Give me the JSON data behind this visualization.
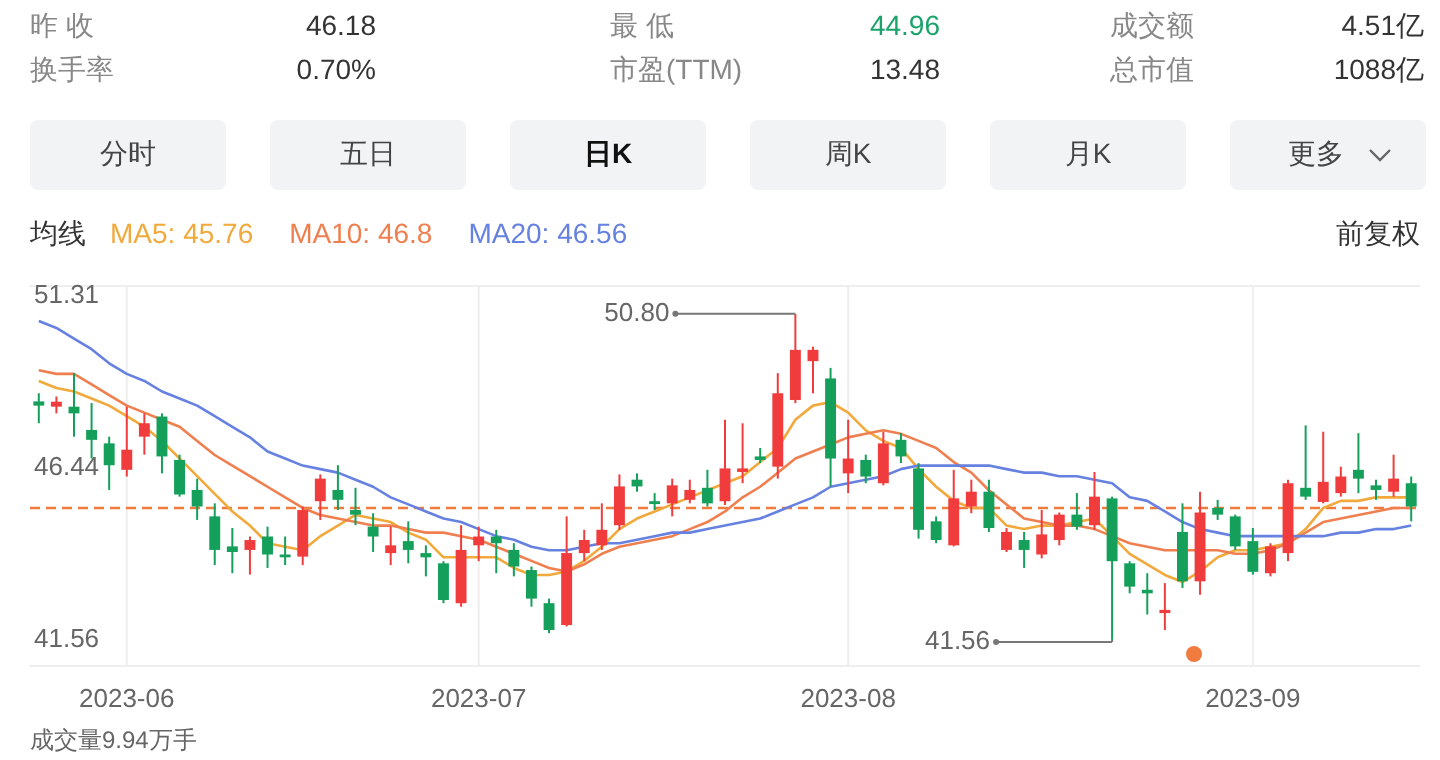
{
  "chart_data": [
    {
      "type": "other",
      "annotations": [
        "昨 收",
        "46.18",
        "最 低",
        "44.96",
        "成交额",
        "4.51亿",
        "换手率",
        "0.70%",
        "市盈(TTM)",
        "13.48",
        "总市值",
        "1088亿",
        "分时",
        "五日",
        "日K",
        "周K",
        "月K",
        "更多"
      ]
    },
    {
      "type": "candlestick",
      "legend": "top left",
      "grid": "x",
      "annotations": [
        "均线",
        "前复权",
        "50.80",
        "41.56",
        "成交量9.94万手"
      ],
      "ylim": [
        40.82,
        51.59
      ],
      "yticks": [
        51.31,
        46.44,
        41.56
      ],
      "ref_lines": [
        {
          "axis": "y",
          "value": 45.3,
          "color": "#f07b3f",
          "line_style": "dashed"
        }
      ],
      "categories": [
        null,
        null,
        null,
        null,
        null,
        "2023-06",
        null,
        null,
        null,
        null,
        null,
        null,
        null,
        null,
        null,
        null,
        null,
        null,
        null,
        null,
        null,
        null,
        null,
        null,
        null,
        "2023-07",
        null,
        null,
        null,
        null,
        null,
        null,
        null,
        null,
        null,
        null,
        null,
        null,
        null,
        null,
        null,
        null,
        null,
        null,
        null,
        null,
        "2023-08",
        null,
        null,
        null,
        null,
        null,
        null,
        null,
        null,
        null,
        null,
        null,
        null,
        null,
        null,
        null,
        null,
        null,
        null,
        null,
        null,
        null,
        null,
        "2023-09",
        null,
        null,
        null,
        null,
        null,
        null,
        null,
        null,
        null
      ],
      "ohlc": [
        [
          48.32,
          48.55,
          47.7,
          48.2
        ],
        [
          48.17,
          48.46,
          47.98,
          48.31
        ],
        [
          48.17,
          49.12,
          47.32,
          47.98
        ],
        [
          47.51,
          48.27,
          46.7,
          47.23
        ],
        [
          47.13,
          47.32,
          45.81,
          46.51
        ],
        [
          46.38,
          48.17,
          46.19,
          46.95
        ],
        [
          47.32,
          47.98,
          46.81,
          47.7
        ],
        [
          47.89,
          47.98,
          46.28,
          46.76
        ],
        [
          46.66,
          46.81,
          45.62,
          45.68
        ],
        [
          45.81,
          46.13,
          44.96,
          45.34
        ],
        [
          45.06,
          45.43,
          43.68,
          44.11
        ],
        [
          44.21,
          44.73,
          43.45,
          44.05
        ],
        [
          44.11,
          44.49,
          43.41,
          44.39
        ],
        [
          44.49,
          44.77,
          43.6,
          43.98
        ],
        [
          43.98,
          44.49,
          43.68,
          43.9
        ],
        [
          43.92,
          45.34,
          43.68,
          45.24
        ],
        [
          45.49,
          46.25,
          44.96,
          46.13
        ],
        [
          45.81,
          46.51,
          45.24,
          45.53
        ],
        [
          45.24,
          45.87,
          44.81,
          45.11
        ],
        [
          44.77,
          45.15,
          44.05,
          44.49
        ],
        [
          44.02,
          44.77,
          43.68,
          44.24
        ],
        [
          44.36,
          44.92,
          43.73,
          44.11
        ],
        [
          44.02,
          44.24,
          43.36,
          43.9
        ],
        [
          43.73,
          43.79,
          42.6,
          42.69
        ],
        [
          42.6,
          44.81,
          42.5,
          44.11
        ],
        [
          44.24,
          44.77,
          43.79,
          44.49
        ],
        [
          44.49,
          44.68,
          43.45,
          44.3
        ],
        [
          44.11,
          44.3,
          43.36,
          43.64
        ],
        [
          43.54,
          43.64,
          42.5,
          42.73
        ],
        [
          42.6,
          42.73,
          41.75,
          41.84
        ],
        [
          41.98,
          45.06,
          41.94,
          44.02
        ],
        [
          44.02,
          44.68,
          43.79,
          44.39
        ],
        [
          44.24,
          45.43,
          44.11,
          44.68
        ],
        [
          44.81,
          46.25,
          44.68,
          45.91
        ],
        [
          46.1,
          46.28,
          45.76,
          45.91
        ],
        [
          45.49,
          45.72,
          45.24,
          45.41
        ],
        [
          45.43,
          46.13,
          45.06,
          45.94
        ],
        [
          45.53,
          46.1,
          45.43,
          45.81
        ],
        [
          45.87,
          46.38,
          45.34,
          45.43
        ],
        [
          45.49,
          47.8,
          45.38,
          46.42
        ],
        [
          46.32,
          47.7,
          46.0,
          46.42
        ],
        [
          46.76,
          47.0,
          46.57,
          46.66
        ],
        [
          46.47,
          49.12,
          46.13,
          48.55
        ],
        [
          48.36,
          50.8,
          48.27,
          49.78
        ],
        [
          49.46,
          49.87,
          48.55,
          49.78
        ],
        [
          48.97,
          49.27,
          45.91,
          46.7
        ],
        [
          46.28,
          47.8,
          45.72,
          46.7
        ],
        [
          46.66,
          46.81,
          46.0,
          46.19
        ],
        [
          46.0,
          47.46,
          45.94,
          47.13
        ],
        [
          47.23,
          47.42,
          46.57,
          46.76
        ],
        [
          46.42,
          46.57,
          44.43,
          44.68
        ],
        [
          44.92,
          45.06,
          44.3,
          44.39
        ],
        [
          44.24,
          46.38,
          44.21,
          45.57
        ],
        [
          45.34,
          46.1,
          45.15,
          45.76
        ],
        [
          45.76,
          46.1,
          44.62,
          44.73
        ],
        [
          44.11,
          44.73,
          44.05,
          44.62
        ],
        [
          44.39,
          44.62,
          43.6,
          44.11
        ],
        [
          43.98,
          45.24,
          43.87,
          44.55
        ],
        [
          44.39,
          45.17,
          44.24,
          45.11
        ],
        [
          45.11,
          45.72,
          44.68,
          44.77
        ],
        [
          44.81,
          46.32,
          44.68,
          45.62
        ],
        [
          45.57,
          45.62,
          41.56,
          43.79
        ],
        [
          43.73,
          43.79,
          42.88,
          43.07
        ],
        [
          42.98,
          43.45,
          42.28,
          42.88
        ],
        [
          42.32,
          43.17,
          41.84,
          42.41
        ],
        [
          44.62,
          45.43,
          43.03,
          43.22
        ],
        [
          43.22,
          45.76,
          42.84,
          45.17
        ],
        [
          45.3,
          45.53,
          44.96,
          45.11
        ],
        [
          45.06,
          45.11,
          44.11,
          44.21
        ],
        [
          44.36,
          44.73,
          43.41,
          43.49
        ],
        [
          43.45,
          44.3,
          43.36,
          44.21
        ],
        [
          44.02,
          46.1,
          43.79,
          46.0
        ],
        [
          45.87,
          47.64,
          45.53,
          45.62
        ],
        [
          45.47,
          47.46,
          45.43,
          46.04
        ],
        [
          45.72,
          46.47,
          45.62,
          46.19
        ],
        [
          46.38,
          47.42,
          45.72,
          46.13
        ],
        [
          45.94,
          46.1,
          45.53,
          45.81
        ],
        [
          45.76,
          46.81,
          45.62,
          46.13
        ],
        [
          46.0,
          46.19,
          44.92,
          45.34
        ]
      ],
      "colors": [
        "#14a05a",
        "#f03c3c",
        "#14a05a",
        "#14a05a",
        "#14a05a",
        "#f03c3c",
        "#f03c3c",
        "#14a05a",
        "#14a05a",
        "#14a05a",
        "#14a05a",
        "#14a05a",
        "#f03c3c",
        "#14a05a",
        "#14a05a",
        "#f03c3c",
        "#f03c3c",
        "#14a05a",
        "#14a05a",
        "#14a05a",
        "#f03c3c",
        "#14a05a",
        "#14a05a",
        "#14a05a",
        "#f03c3c",
        "#f03c3c",
        "#14a05a",
        "#14a05a",
        "#14a05a",
        "#14a05a",
        "#f03c3c",
        "#f03c3c",
        "#f03c3c",
        "#f03c3c",
        "#14a05a",
        "#14a05a",
        "#f03c3c",
        "#f03c3c",
        "#14a05a",
        "#f03c3c",
        "#f03c3c",
        "#14a05a",
        "#f03c3c",
        "#f03c3c",
        "#f03c3c",
        "#14a05a",
        "#f03c3c",
        "#14a05a",
        "#f03c3c",
        "#14a05a",
        "#14a05a",
        "#14a05a",
        "#f03c3c",
        "#f03c3c",
        "#14a05a",
        "#f03c3c",
        "#14a05a",
        "#f03c3c",
        "#f03c3c",
        "#14a05a",
        "#f03c3c",
        "#14a05a",
        "#14a05a",
        "#14a05a",
        "#f03c3c",
        "#14a05a",
        "#f03c3c",
        "#14a05a",
        "#14a05a",
        "#14a05a",
        "#f03c3c",
        "#f03c3c",
        "#14a05a",
        "#f03c3c",
        "#f03c3c",
        "#14a05a",
        "#14a05a",
        "#f03c3c",
        "#14a05a"
      ],
      "series": [
        {
          "name": "MA5: 45.76",
          "type": "line",
          "color": "#f2a93b",
          "values": [
            48.9,
            48.7,
            48.6,
            48.4,
            48.2,
            47.9,
            47.6,
            47.2,
            46.7,
            46.2,
            45.7,
            45.2,
            44.8,
            44.3,
            44.2,
            44.1,
            44.5,
            44.8,
            45.1,
            45.0,
            44.9,
            44.6,
            44.4,
            43.9,
            43.9,
            43.9,
            43.9,
            43.6,
            43.4,
            43.4,
            43.5,
            43.8,
            44.2,
            44.7,
            45.0,
            45.2,
            45.4,
            45.6,
            45.8,
            46.0,
            46.2,
            46.6,
            47.0,
            47.8,
            48.2,
            48.3,
            48.0,
            47.5,
            47.2,
            47.0,
            46.4,
            45.9,
            45.5,
            45.3,
            45.3,
            44.8,
            44.7,
            44.8,
            44.8,
            44.9,
            45.0,
            44.5,
            44.0,
            43.7,
            43.4,
            43.2,
            43.5,
            43.9,
            44.1,
            44.1,
            44.2,
            44.3,
            44.7,
            45.3,
            45.5,
            45.5,
            45.6,
            45.6,
            45.6
          ]
        },
        {
          "name": "MA10: 46.8",
          "type": "line",
          "color": "#ef7f4f",
          "values": [
            49.2,
            49.1,
            49.1,
            48.8,
            48.5,
            48.2,
            48.0,
            47.8,
            47.6,
            47.2,
            46.8,
            46.5,
            46.2,
            45.9,
            45.6,
            45.3,
            45.1,
            45.0,
            44.9,
            44.8,
            44.8,
            44.7,
            44.6,
            44.6,
            44.5,
            44.4,
            44.2,
            44.0,
            43.8,
            43.6,
            43.5,
            43.7,
            44.0,
            44.2,
            44.3,
            44.4,
            44.5,
            44.7,
            44.9,
            45.2,
            45.6,
            45.9,
            46.3,
            46.7,
            46.9,
            47.1,
            47.3,
            47.4,
            47.5,
            47.4,
            47.2,
            47.0,
            46.6,
            46.3,
            45.8,
            45.4,
            45.0,
            44.9,
            44.8,
            44.8,
            44.7,
            44.5,
            44.3,
            44.2,
            44.1,
            44.1,
            44.1,
            44.1,
            44.0,
            44.0,
            44.1,
            44.3,
            44.6,
            44.9,
            45.0,
            45.1,
            45.2,
            45.3,
            45.3
          ]
        },
        {
          "name": "MA20: 46.56",
          "type": "line",
          "color": "#6681e0",
          "values": [
            50.6,
            50.4,
            50.1,
            49.8,
            49.4,
            49.1,
            48.9,
            48.6,
            48.4,
            48.2,
            47.9,
            47.6,
            47.3,
            46.9,
            46.7,
            46.5,
            46.4,
            46.3,
            46.1,
            45.9,
            45.6,
            45.4,
            45.2,
            45.0,
            44.9,
            44.7,
            44.5,
            44.4,
            44.2,
            44.1,
            44.1,
            44.2,
            44.3,
            44.3,
            44.4,
            44.5,
            44.6,
            44.6,
            44.7,
            44.8,
            44.9,
            45.0,
            45.2,
            45.4,
            45.6,
            45.9,
            46.0,
            46.1,
            46.2,
            46.4,
            46.5,
            46.5,
            46.5,
            46.5,
            46.5,
            46.4,
            46.3,
            46.3,
            46.2,
            46.2,
            46.1,
            46.0,
            45.6,
            45.5,
            45.2,
            44.9,
            44.7,
            44.6,
            44.5,
            44.5,
            44.5,
            44.5,
            44.5,
            44.5,
            44.6,
            44.6,
            44.7,
            44.7,
            44.8
          ]
        }
      ]
    }
  ]
}
